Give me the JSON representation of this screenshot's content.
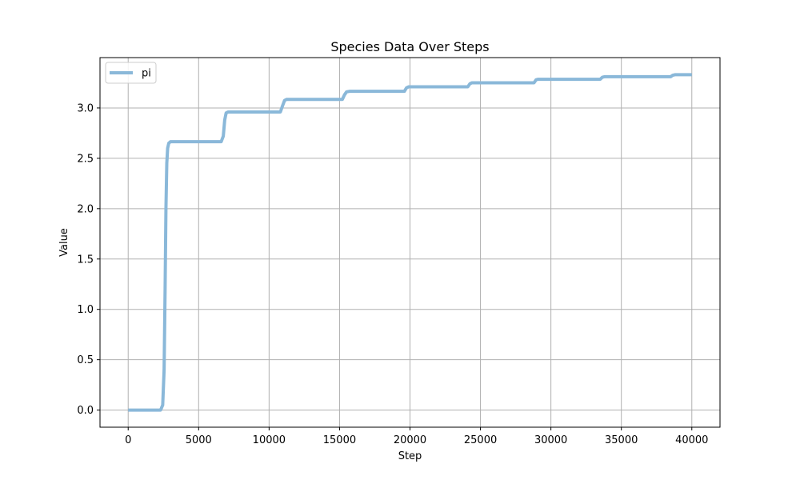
{
  "chart_data": {
    "type": "line",
    "title": "Species Data Over Steps",
    "xlabel": "Step",
    "ylabel": "Value",
    "xlim": [
      -2000,
      42000
    ],
    "ylim": [
      -0.17,
      3.5
    ],
    "xticks": [
      0,
      5000,
      10000,
      15000,
      20000,
      25000,
      30000,
      35000,
      40000
    ],
    "xtick_labels": [
      "0",
      "5000",
      "10000",
      "15000",
      "20000",
      "25000",
      "30000",
      "35000",
      "40000"
    ],
    "yticks": [
      0.0,
      0.5,
      1.0,
      1.5,
      2.0,
      2.5,
      3.0
    ],
    "ytick_labels": [
      "0.0",
      "0.5",
      "1.0",
      "1.5",
      "2.0",
      "2.5",
      "3.0"
    ],
    "grid": true,
    "legend_position": "upper-left",
    "series": [
      {
        "name": "pi",
        "color": "#8ab8d9",
        "x": [
          0,
          2300,
          2450,
          2550,
          2620,
          2680,
          2740,
          2800,
          2880,
          3000,
          6600,
          6750,
          6850,
          6950,
          7100,
          10800,
          10950,
          11100,
          11250,
          15200,
          15350,
          15500,
          15700,
          19600,
          19750,
          19900,
          24100,
          24250,
          24400,
          28800,
          28950,
          29100,
          33500,
          33650,
          33800,
          38500,
          38650,
          38800,
          40000
        ],
        "y": [
          0.0,
          0.0,
          0.05,
          0.4,
          1.2,
          2.0,
          2.45,
          2.6,
          2.65,
          2.665,
          2.665,
          2.72,
          2.88,
          2.95,
          2.96,
          2.96,
          3.02,
          3.075,
          3.085,
          3.085,
          3.13,
          3.16,
          3.165,
          3.165,
          3.2,
          3.21,
          3.21,
          3.24,
          3.25,
          3.25,
          3.28,
          3.285,
          3.285,
          3.305,
          3.31,
          3.31,
          3.325,
          3.33,
          3.33
        ]
      }
    ]
  }
}
